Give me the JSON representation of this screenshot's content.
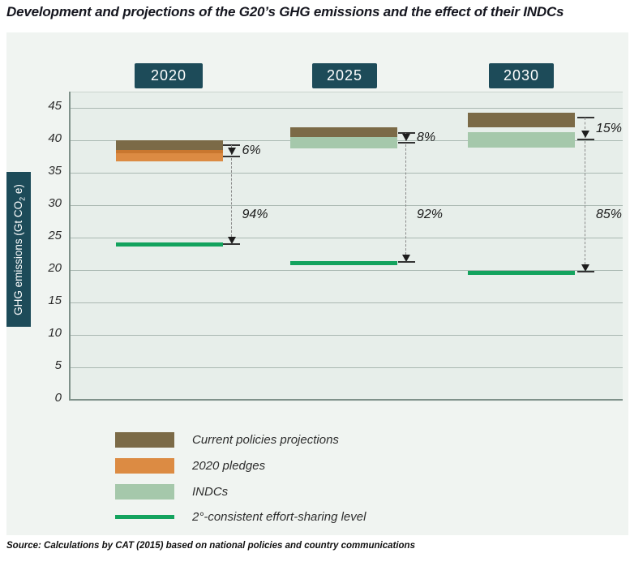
{
  "title": "Development and projections of the G20’s GHG emissions and the effect of their INDCs",
  "source": "Source: Calculations by CAT (2015) based on national policies and country communications",
  "chart_data": {
    "type": "bar",
    "title": "Development and projections of the G20’s GHG emissions and the effect of their INDCs",
    "ylabel": "GHG emissions (Gt CO2 e)",
    "ylabel_parts": {
      "prefix": "GHG emissions (Gt CO",
      "sub": "2",
      "suffix": " e)"
    },
    "xlabel": "",
    "ylim": [
      0,
      45
    ],
    "yticks": [
      0,
      5,
      10,
      15,
      20,
      25,
      30,
      35,
      40,
      45
    ],
    "grid": true,
    "legend_position": "bottom",
    "unit": "Gt CO2 e",
    "groups": [
      {
        "year": "2020",
        "bars": [
          {
            "series": "Current policies projections",
            "range": [
              38.5,
              40.0
            ],
            "color_key": "current_policies"
          },
          {
            "series": "2020 pledges overlap",
            "range": [
              38.0,
              38.5
            ],
            "color_key": "pledges_overlap"
          },
          {
            "series": "2020 pledges",
            "range": [
              36.75,
              38.0
            ],
            "color_key": "pledges"
          }
        ],
        "level": {
          "series": "2°-consistent effort-sharing level",
          "value": 23.9
        },
        "annotations": [
          {
            "kind": "upper",
            "label": "6%",
            "from": 39.3,
            "to": 37.45
          },
          {
            "kind": "lower",
            "label": "94%",
            "from": 37.45,
            "to": 23.9
          }
        ]
      },
      {
        "year": "2025",
        "bars": [
          {
            "series": "Current policies projections",
            "range": [
              40.5,
              42.0
            ],
            "color_key": "current_policies"
          },
          {
            "series": "INDCs",
            "range": [
              38.8,
              40.5
            ],
            "color_key": "indcs"
          }
        ],
        "level": {
          "series": "2°-consistent effort-sharing level",
          "value": 21.1
        },
        "annotations": [
          {
            "kind": "upper",
            "label": "8%",
            "from": 41.1,
            "to": 39.6
          },
          {
            "kind": "lower",
            "label": "92%",
            "from": 39.6,
            "to": 21.1
          }
        ]
      },
      {
        "year": "2030",
        "bars": [
          {
            "series": "Current policies projections",
            "range": [
              42.0,
              44.25
            ],
            "color_key": "current_policies"
          },
          {
            "series": "INDCs",
            "range": [
              38.9,
              41.3
            ],
            "color_key": "indcs"
          }
        ],
        "level": {
          "series": "2°-consistent effort-sharing level",
          "value": 19.6
        },
        "annotations": [
          {
            "kind": "upper",
            "label": "15%",
            "from": 43.5,
            "to": 40.1
          },
          {
            "kind": "lower",
            "label": "85%",
            "from": 40.1,
            "to": 19.6
          }
        ]
      }
    ],
    "legend": [
      {
        "label": "Current policies projections",
        "color_key": "current_policies",
        "swatch": "bar"
      },
      {
        "label": "2020 pledges",
        "color_key": "pledges",
        "swatch": "bar"
      },
      {
        "label": "INDCs",
        "color_key": "indcs",
        "swatch": "bar"
      },
      {
        "label": "2°-consistent effort-sharing level",
        "color_key": "two_degree_level",
        "swatch": "line"
      }
    ],
    "colors": {
      "current_policies": "#7b6a47",
      "pledges": "#dc8b43",
      "pledges_overlap": "#c9772f",
      "indcs": "#a5c8ab",
      "two_degree_level": "#13a35e",
      "year_box": "#1d4b59",
      "panel_bg": "#f0f4f1",
      "plot_bg": "#e7eeea"
    }
  }
}
